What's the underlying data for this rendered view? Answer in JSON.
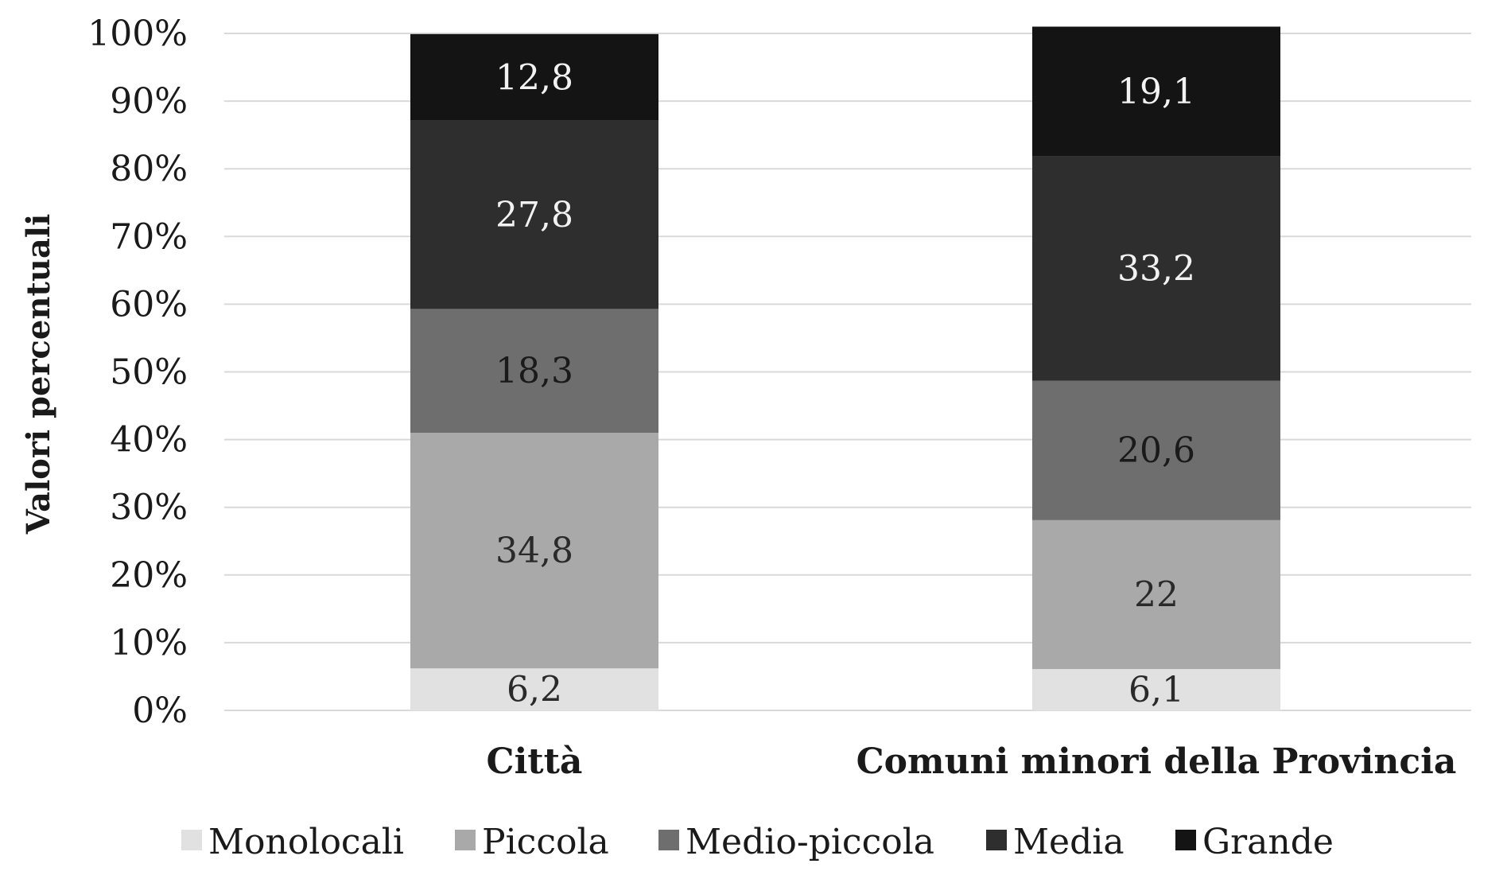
{
  "chart_data": {
    "type": "bar",
    "stacked": true,
    "title": "",
    "xlabel": "",
    "ylabel": "Valori percentuali",
    "ylim": [
      0,
      100
    ],
    "y_ticks": [
      "0%",
      "10%",
      "20%",
      "30%",
      "40%",
      "50%",
      "60%",
      "70%",
      "80%",
      "90%",
      "100%"
    ],
    "categories": [
      "Città",
      "Comuni minori della Provincia"
    ],
    "series": [
      {
        "name": "Monolocali",
        "values": [
          6.2,
          6.1
        ],
        "labels": [
          "6,2",
          "6,1"
        ],
        "color": "#e1e1e1",
        "label_color": "#2a2a2a"
      },
      {
        "name": "Piccola",
        "values": [
          34.8,
          22
        ],
        "labels": [
          "34,8",
          "22"
        ],
        "color": "#a9a9a9",
        "label_color": "#2a2a2a"
      },
      {
        "name": "Medio-piccola",
        "values": [
          18.3,
          20.6
        ],
        "labels": [
          "18,3",
          "20,6"
        ],
        "color": "#6e6e6e",
        "label_color": "#1a1a1a"
      },
      {
        "name": "Media",
        "values": [
          27.8,
          33.2
        ],
        "labels": [
          "27,8",
          "33,2"
        ],
        "color": "#2e2e2e",
        "label_color": "#f2f2f2"
      },
      {
        "name": "Grande",
        "values": [
          12.8,
          19.1
        ],
        "labels": [
          "12,8",
          "19,1"
        ],
        "color": "#141414",
        "label_color": "#f2f2f2"
      }
    ],
    "grid": true,
    "legend": "bottom"
  }
}
